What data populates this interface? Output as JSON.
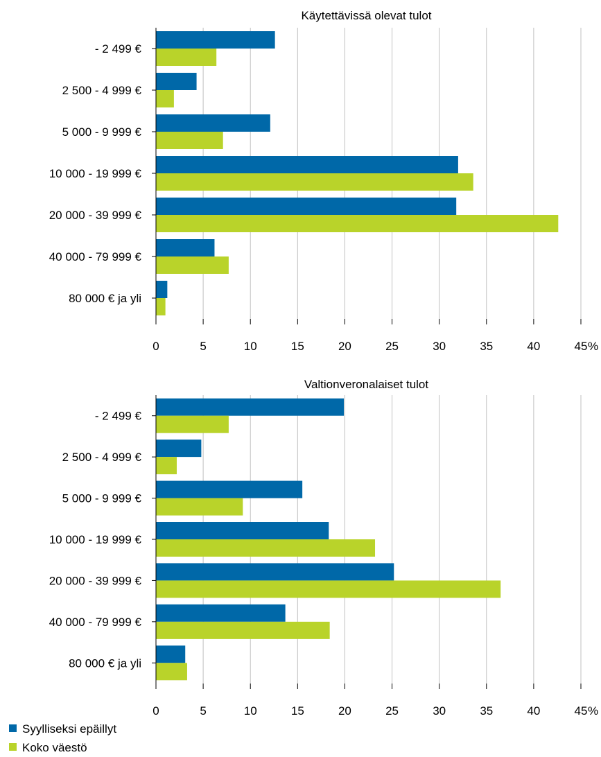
{
  "chart_data": [
    {
      "type": "bar",
      "orientation": "horizontal",
      "title": "Käytettävissä olevat tulot",
      "categories": [
        "- 2 499 €",
        "2 500 - 4 999 €",
        "5 000 - 9 999 €",
        "10 000 - 19 999 €",
        "20 000 - 39 999 €",
        "40 000 - 79 999 €",
        "80 000 € ja yli"
      ],
      "series": [
        {
          "name": "Syylliseksi epäillyt",
          "values": [
            12.6,
            4.3,
            12.1,
            32.0,
            31.8,
            6.2,
            1.2
          ]
        },
        {
          "name": "Koko väestö",
          "values": [
            6.4,
            1.9,
            7.1,
            33.6,
            42.6,
            7.7,
            1.0
          ]
        }
      ],
      "xlim": [
        0,
        45
      ],
      "xticks": [
        "0",
        "5",
        "10",
        "15",
        "20",
        "25",
        "30",
        "35",
        "40",
        "45"
      ],
      "unit": "%",
      "grid": true
    },
    {
      "type": "bar",
      "orientation": "horizontal",
      "title": "Valtionveronalaiset tulot",
      "categories": [
        "- 2 499 €",
        "2 500 - 4 999 €",
        "5 000 - 9 999 €",
        "10 000 - 19 999 €",
        "20 000 - 39 999 €",
        "40 000 - 79 999 €",
        "80 000 € ja yli"
      ],
      "series": [
        {
          "name": "Syylliseksi epäillyt",
          "values": [
            19.9,
            4.8,
            15.5,
            18.3,
            25.2,
            13.7,
            3.1
          ]
        },
        {
          "name": "Koko väestö",
          "values": [
            7.7,
            2.2,
            9.2,
            23.2,
            36.5,
            18.4,
            3.3
          ]
        }
      ],
      "xlim": [
        0,
        45
      ],
      "xticks": [
        "0",
        "5",
        "10",
        "15",
        "20",
        "25",
        "30",
        "35",
        "40",
        "45"
      ],
      "unit": "%",
      "grid": true
    }
  ],
  "legend": {
    "position": "bottom-left",
    "items": [
      {
        "label": "Syylliseksi epäillyt",
        "color": "#0068a8"
      },
      {
        "label": "Koko väestö",
        "color": "#b9d32a"
      }
    ]
  },
  "colors": {
    "series1": "#0068a8",
    "series2": "#b9d32a",
    "grid": "#c0c0c0"
  }
}
